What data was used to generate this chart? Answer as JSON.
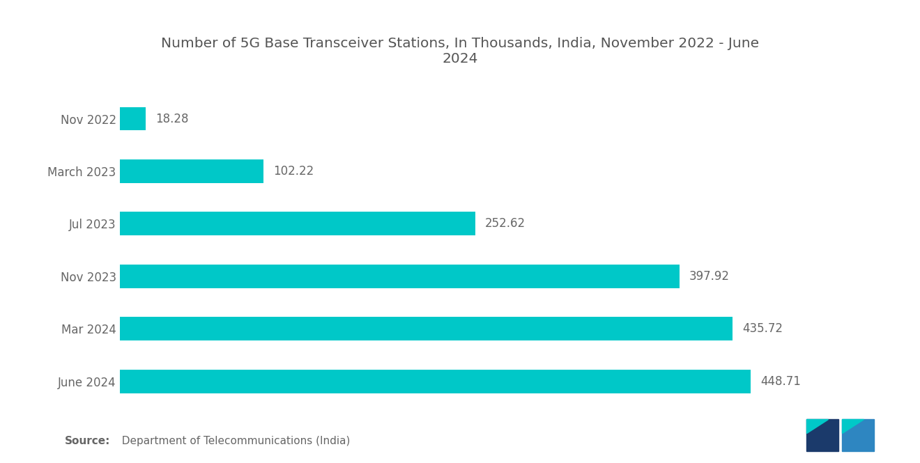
{
  "title": "Number of 5G Base Transceiver Stations, In Thousands, India, November 2022 - June\n2024",
  "categories": [
    "Nov 2022",
    "March 2023",
    "Jul 2023",
    "Nov 2023",
    "Mar 2024",
    "June 2024"
  ],
  "values": [
    18.28,
    102.22,
    252.62,
    397.92,
    435.72,
    448.71
  ],
  "bar_color": "#00C8C8",
  "label_color": "#666666",
  "title_color": "#555555",
  "background_color": "#ffffff",
  "source_bold": "Source:",
  "source_rest": "  Department of Telecommunications (India)",
  "title_fontsize": 14.5,
  "label_fontsize": 12,
  "tick_fontsize": 12,
  "source_fontsize": 11,
  "bar_height": 0.45,
  "xlim": [
    0,
    510
  ],
  "logo_left_color": "#1B3A6B",
  "logo_right_color": "#2E86C1",
  "logo_teal_color": "#00C8C8"
}
